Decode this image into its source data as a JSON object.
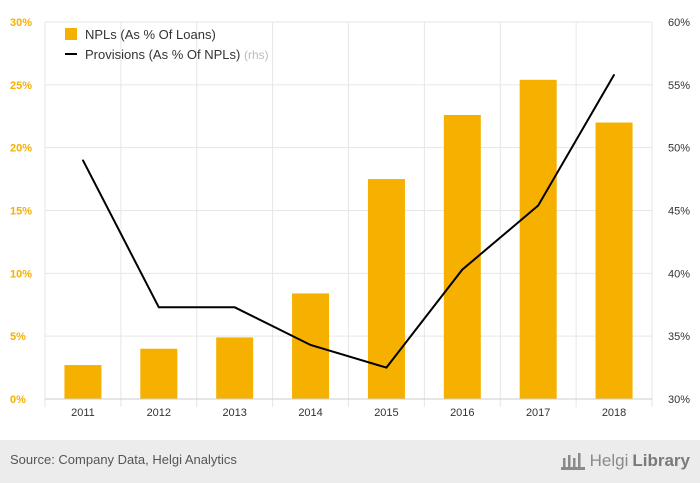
{
  "chart_data": {
    "type": "bar+line",
    "categories": [
      "2011",
      "2012",
      "2013",
      "2014",
      "2015",
      "2016",
      "2017",
      "2018"
    ],
    "series": [
      {
        "name": "NPLs (As % Of Loans)",
        "type": "bar",
        "axis": "left",
        "color": "#f5b000",
        "values": [
          2.7,
          4.0,
          4.9,
          8.4,
          17.5,
          22.6,
          25.4,
          22.0
        ]
      },
      {
        "name": "Provisions (As % Of NPLs)",
        "name_suffix": "(rhs)",
        "type": "line",
        "axis": "right",
        "color": "#000000",
        "values": [
          49.0,
          37.3,
          37.3,
          34.3,
          32.5,
          40.3,
          45.4,
          55.8
        ]
      }
    ],
    "left_axis": {
      "min": 0,
      "max": 30,
      "ticks": [
        "0%",
        "5%",
        "10%",
        "15%",
        "20%",
        "25%",
        "30%"
      ],
      "tick_color": "#f5b000"
    },
    "right_axis": {
      "min": 30,
      "max": 60,
      "ticks": [
        "30%",
        "35%",
        "40%",
        "45%",
        "50%",
        "55%",
        "60%"
      ]
    },
    "grid": true,
    "legend_position": "top-left"
  },
  "footer": {
    "source": "Source: Company Data, Helgi Analytics",
    "logo_prefix": "Helgi",
    "logo_suffix": "Library"
  }
}
